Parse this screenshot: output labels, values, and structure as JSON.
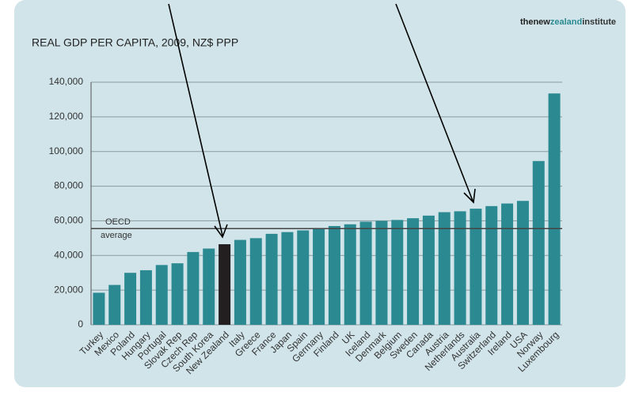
{
  "chart_data": {
    "type": "bar",
    "title": "REAL GDP PER CAPITA, 2009, NZ$ PPP",
    "logo": [
      "thenew",
      "zealand",
      "institute"
    ],
    "categories": [
      "Turkey",
      "Mexico",
      "Poland",
      "Hungary",
      "Portugal",
      "Slovak Rep",
      "Czech Rep",
      "South Korea",
      "New Zealand",
      "Italy",
      "Greece",
      "France",
      "Japan",
      "Spain",
      "Germany",
      "Finland",
      "UK",
      "Iceland",
      "Denmark",
      "Belgium",
      "Sweden",
      "Canada",
      "Austria",
      "Netherlands",
      "Australia",
      "Switzerland",
      "Ireland",
      "USA",
      "Norway",
      "Luxembourg"
    ],
    "values": [
      18500,
      23000,
      30000,
      31500,
      34500,
      35500,
      42000,
      44000,
      46500,
      49000,
      50000,
      52500,
      53500,
      54500,
      55500,
      57000,
      58000,
      59500,
      60000,
      60500,
      61500,
      63000,
      65000,
      65500,
      67000,
      68500,
      70000,
      71500,
      94500,
      133500
    ],
    "colors": [
      "#2b8a91",
      "#2b8a91",
      "#2b8a91",
      "#2b8a91",
      "#2b8a91",
      "#2b8a91",
      "#2b8a91",
      "#2b8a91",
      "#231f20",
      "#2b8a91",
      "#2b8a91",
      "#2b8a91",
      "#2b8a91",
      "#2b8a91",
      "#2b8a91",
      "#2b8a91",
      "#2b8a91",
      "#2b8a91",
      "#2b8a91",
      "#2b8a91",
      "#2b8a91",
      "#2b8a91",
      "#2b8a91",
      "#2b8a91",
      "#2b8a91",
      "#2b8a91",
      "#2b8a91",
      "#2b8a91",
      "#2b8a91",
      "#2b8a91"
    ],
    "ylim": [
      0,
      140000
    ],
    "yticks": [
      0,
      {
        "value": 20000,
        "label": "20,000"
      },
      {
        "value": 40000,
        "label": "40,000"
      },
      {
        "value": 60000,
        "label": "60,000"
      },
      {
        "value": 80000,
        "label": "80,000"
      },
      {
        "value": 100000,
        "label": "100,000"
      },
      {
        "value": 120000,
        "label": "120,000"
      },
      {
        "value": 140000,
        "label": "140,000"
      }
    ],
    "grid": true,
    "reference_line": {
      "value": 55500,
      "label": [
        "OECD",
        "average"
      ]
    }
  }
}
